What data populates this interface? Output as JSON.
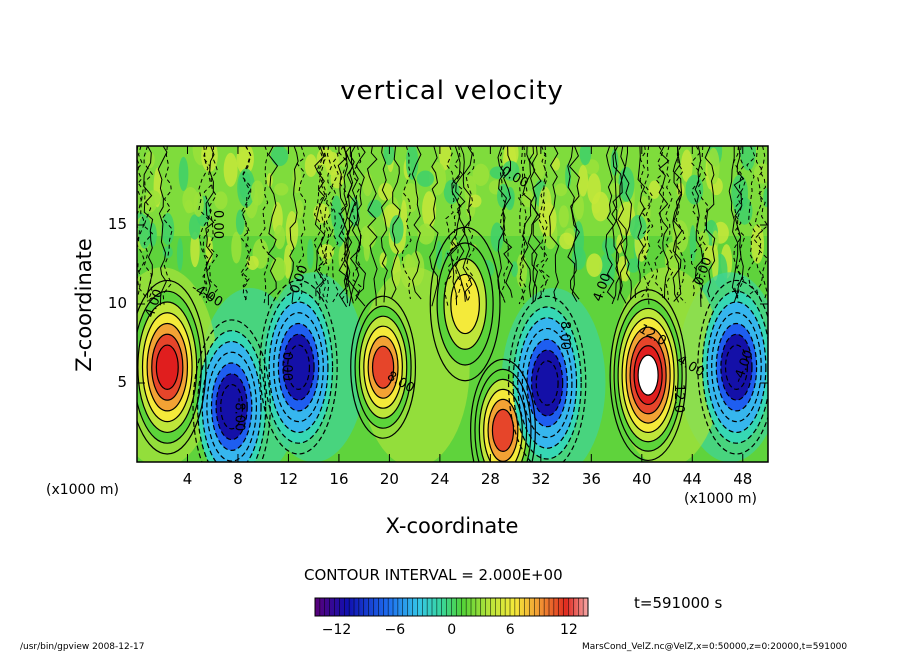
{
  "chart_data": {
    "type": "heatmap",
    "title": "vertical velocity",
    "xlabel": "X-coordinate",
    "ylabel": "Z-coordinate",
    "x_unit_left": "(x1000 m)",
    "x_unit_right": "(x1000 m)",
    "xlim": [
      0,
      50
    ],
    "ylim": [
      0,
      20
    ],
    "x_ticks": [
      "4",
      "8",
      "12",
      "16",
      "20",
      "24",
      "28",
      "32",
      "36",
      "40",
      "44",
      "48"
    ],
    "x_tick_values": [
      4,
      8,
      12,
      16,
      20,
      24,
      28,
      32,
      36,
      40,
      44,
      48
    ],
    "y_ticks": [
      "5",
      "10",
      "15"
    ],
    "y_tick_values": [
      5,
      10,
      15
    ],
    "contour_interval_text": "CONTOUR INTERVAL = 2.000E+00",
    "contour_labels": [
      "4.00",
      "-4.00",
      "0.00",
      "0.00",
      "8.00",
      "-8.00",
      "4.00",
      "12.0",
      "12.0",
      "-4.00",
      "0.00",
      "0.00",
      "0.00",
      "4.00",
      "8.00"
    ],
    "colorbar": {
      "range": [
        -14,
        14
      ],
      "ticks": [
        "−12",
        "−6",
        "0",
        "6",
        "12"
      ],
      "tick_values": [
        -12,
        -6,
        0,
        6,
        12
      ]
    },
    "features": [
      {
        "x": 2.4,
        "z": 6.0,
        "value": 12
      },
      {
        "x": 7.5,
        "z": 3.5,
        "value": -12
      },
      {
        "x": 12.8,
        "z": 6.0,
        "value": -12
      },
      {
        "x": 19.5,
        "z": 6.0,
        "value": 9
      },
      {
        "x": 26.0,
        "z": 10.0,
        "value": 6
      },
      {
        "x": 29.0,
        "z": 2.0,
        "value": 10
      },
      {
        "x": 32.5,
        "z": 5.0,
        "value": -12
      },
      {
        "x": 40.5,
        "z": 5.5,
        "value": 14
      },
      {
        "x": 47.5,
        "z": 6.0,
        "value": -12
      }
    ],
    "time_label": "t=591000 s",
    "footer_left": "/usr/bin/gpview  2008-12-17",
    "footer_right": "MarsCond_VelZ.nc@VelZ,x=0:50000,z=0:20000,t=591000"
  },
  "colors": {
    "background": "#ffffff",
    "colormap": [
      "#3b006e",
      "#1a1aa8",
      "#1f5cf2",
      "#38b6f0",
      "#33d6c8",
      "#4bd24b",
      "#9fe03a",
      "#f0ec3a",
      "#f2a63a",
      "#e8402a",
      "#f09090",
      "#ffffff"
    ]
  }
}
